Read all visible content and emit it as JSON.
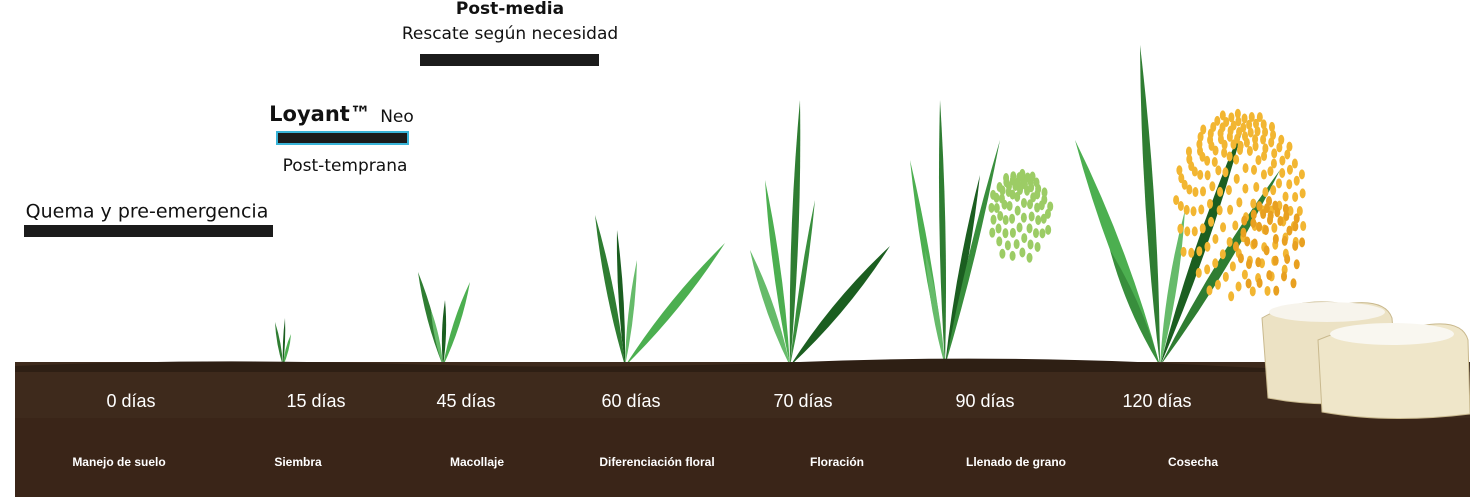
{
  "treatments": [
    {
      "name": "Post-media",
      "note": "Rescate según necesidad"
    },
    {
      "name": "Loyant™",
      "suffix": "Neo",
      "note": "Post-temprana"
    },
    {
      "name": "Quema y pre-emergencia"
    }
  ],
  "timeline": {
    "days": [
      "0 días",
      "15 días",
      "45 días",
      "60 días",
      "70 días",
      "90 días",
      "120 días"
    ],
    "stages": [
      "Manejo de suelo",
      "Siembra",
      "Macollaje",
      "Diferenciación floral",
      "Floración",
      "Llenado de grano",
      "Cosecha"
    ]
  }
}
